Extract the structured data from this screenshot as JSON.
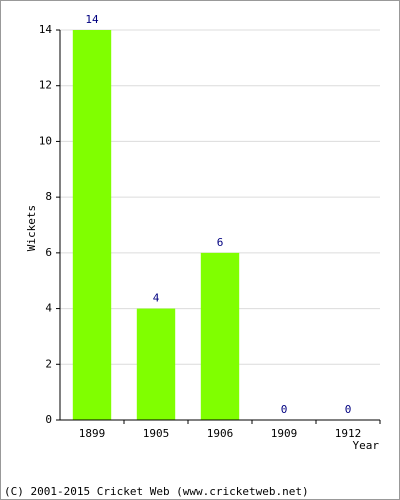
{
  "chart_data": {
    "type": "bar",
    "categories": [
      "1899",
      "1905",
      "1906",
      "1909",
      "1912"
    ],
    "values": [
      14,
      4,
      6,
      0,
      0
    ],
    "color": "#80ff00",
    "value_label_color": "#000080",
    "ylim": [
      0,
      14
    ],
    "yticks": [
      0,
      2,
      4,
      6,
      8,
      10,
      12,
      14
    ],
    "grid": true,
    "y_label": "Wickets",
    "x_label": "Year",
    "footer": "(C) 2001-2015 Cricket Web (www.cricketweb.net)"
  }
}
